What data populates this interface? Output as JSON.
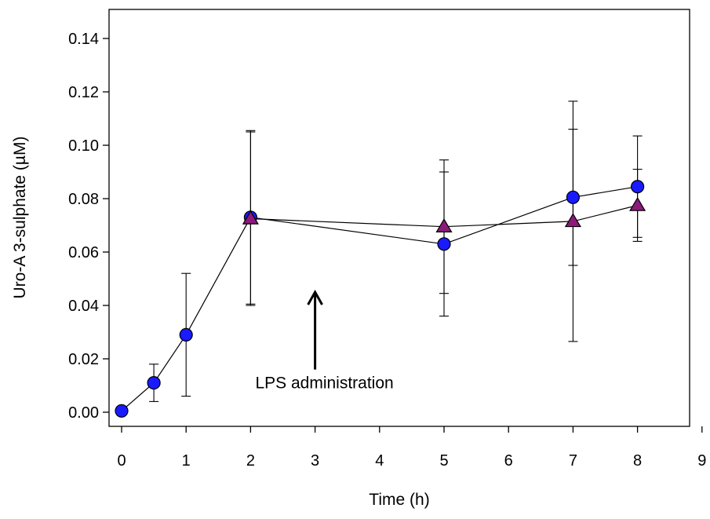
{
  "chart_data": {
    "type": "line",
    "title": "",
    "xlabel": "Time (h)",
    "ylabel": "Uro-A 3-sulphate (µM)",
    "xlim": [
      0,
      9
    ],
    "ylim": [
      0,
      0.15
    ],
    "xticks": [
      0,
      1,
      2,
      3,
      4,
      5,
      6,
      7,
      8,
      9
    ],
    "yticks": [
      0.0,
      0.02,
      0.04,
      0.06,
      0.08,
      0.1,
      0.12,
      0.14
    ],
    "xtick_labels": [
      "0",
      "1",
      "2",
      "3",
      "4",
      "5",
      "6",
      "7",
      "8",
      "9"
    ],
    "ytick_labels": [
      "0.00",
      "0.02",
      "0.04",
      "0.06",
      "0.08",
      "0.10",
      "0.12",
      "0.14"
    ],
    "grid": false,
    "legend": "none",
    "series": [
      {
        "marker": "circle",
        "color": "#1a1aff",
        "points": [
          {
            "x": 0,
            "y": 0.0005,
            "err": 0
          },
          {
            "x": 0.5,
            "y": 0.011,
            "err": 0.007
          },
          {
            "x": 1,
            "y": 0.029,
            "err": 0.023
          },
          {
            "x": 2,
            "y": 0.073,
            "err": 0.0325
          },
          {
            "x": 5,
            "y": 0.063,
            "err": 0.027
          },
          {
            "x": 7,
            "y": 0.0805,
            "err": 0.0255
          },
          {
            "x": 8,
            "y": 0.0845,
            "err": 0.019
          }
        ]
      },
      {
        "marker": "triangle",
        "color": "#8b1a7a",
        "points": [
          {
            "x": 2,
            "y": 0.0725,
            "err": 0.0325
          },
          {
            "x": 5,
            "y": 0.0695,
            "err": 0.025
          },
          {
            "x": 7,
            "y": 0.0715,
            "err": 0.045
          },
          {
            "x": 8,
            "y": 0.0775,
            "err": 0.0135
          }
        ]
      }
    ],
    "annotations": [
      {
        "text": "LPS administration",
        "arrow_x": 3,
        "arrow_from_y": 0.016,
        "arrow_to_y": 0.045
      }
    ]
  }
}
